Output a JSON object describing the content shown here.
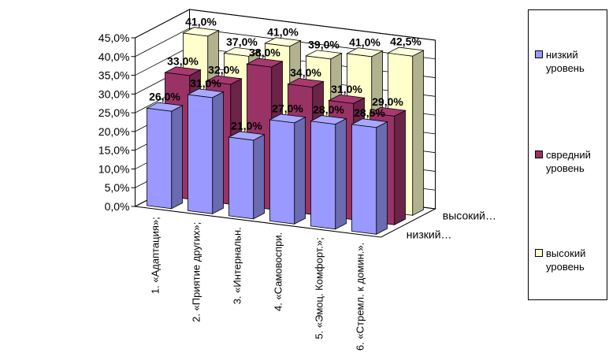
{
  "chart_data": {
    "type": "bar",
    "categories": [
      "1. «Адаптация»;",
      "2. «Приятие других»;",
      "3. «Интернальн.",
      "4. «Самовоспри.",
      "5. «Эмоц. Комфорт.»;",
      "6. «Стремл. к домин.»."
    ],
    "series": [
      {
        "name": "низкий уровень",
        "color": "#9999ff",
        "values": [
          26,
          31,
          21,
          27,
          28,
          28.5
        ],
        "value_labels": [
          "26,0%",
          "31,0%",
          "21,0%",
          "27,0%",
          "28,0%",
          "28,5%"
        ]
      },
      {
        "name": "свредний уровень",
        "color": "#993366",
        "values": [
          33,
          32,
          38,
          34,
          31,
          29
        ],
        "value_labels": [
          "33,0%",
          "32,0%",
          "38,0%",
          "34,0%",
          "31,0%",
          "29,0%"
        ]
      },
      {
        "name": "высокий уровень",
        "color": "#ffffcc",
        "values": [
          41,
          37,
          41,
          39,
          41,
          42.5
        ],
        "value_labels": [
          "41,0%",
          "37,0%",
          "41,0%",
          "39,0%",
          "41,0%",
          "42,5%"
        ]
      }
    ],
    "depth_labels": [
      "низкий…",
      null,
      "высокий…"
    ],
    "ylim": [
      0,
      45
    ],
    "yticks": [
      {
        "value": 0,
        "label": "0,0%"
      },
      {
        "value": 5,
        "label": "5,0%"
      },
      {
        "value": 10,
        "label": "10,0%"
      },
      {
        "value": 15,
        "label": "15,0%"
      },
      {
        "value": 20,
        "label": "20,0%"
      },
      {
        "value": 25,
        "label": "25,0%"
      },
      {
        "value": 30,
        "label": "30,0%"
      },
      {
        "value": 35,
        "label": "35,0%"
      },
      {
        "value": 40,
        "label": "40,0%"
      },
      {
        "value": 45,
        "label": "45,0%"
      }
    ],
    "grid": true,
    "legend": "right"
  }
}
